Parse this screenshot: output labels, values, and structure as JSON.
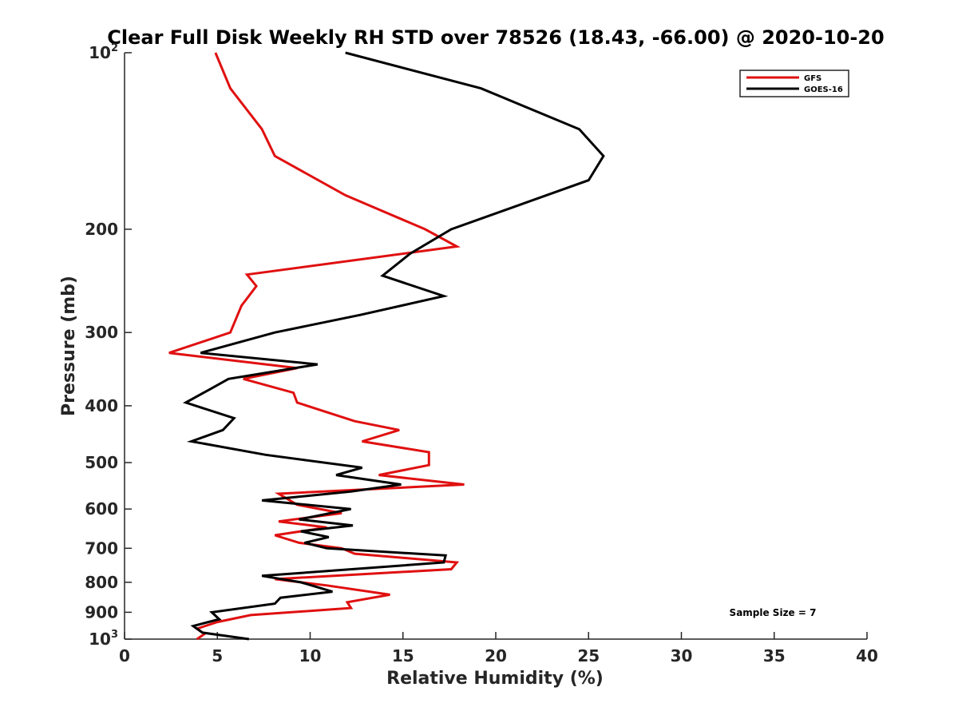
{
  "chart_data": {
    "type": "line",
    "title": "Clear Full Disk Weekly RH STD over 78526 (18.43, -66.00) @ 2020-10-20",
    "xlabel": "Relative Humidity (%)",
    "ylabel": "Pressure (mb)",
    "xlim": [
      0,
      40
    ],
    "ylim": [
      100,
      1000
    ],
    "yscale": "log",
    "y_reversed": true,
    "grid": false,
    "legend_position": "top-right",
    "x_ticks": [
      "0",
      "5",
      "10",
      "15",
      "20",
      "25",
      "30",
      "35",
      "40"
    ],
    "y_ticks": [
      {
        "value": 100,
        "base": "10",
        "exp": "2"
      },
      {
        "value": 200,
        "label": "200"
      },
      {
        "value": 300,
        "label": "300"
      },
      {
        "value": 400,
        "label": "400"
      },
      {
        "value": 500,
        "label": "500"
      },
      {
        "value": 600,
        "label": "600"
      },
      {
        "value": 700,
        "label": "700"
      },
      {
        "value": 800,
        "label": "800"
      },
      {
        "value": 900,
        "label": "900"
      },
      {
        "value": 1000,
        "base": "10",
        "exp": "3"
      }
    ],
    "annotation": "Sample Size = 7",
    "series": [
      {
        "name": "GFS",
        "color": "#e01010",
        "points": [
          [
            4.9,
            100
          ],
          [
            5.7,
            115
          ],
          [
            7.4,
            135
          ],
          [
            8.1,
            150
          ],
          [
            11.9,
            175
          ],
          [
            16.2,
            200
          ],
          [
            17.9,
            214
          ],
          [
            6.6,
            239
          ],
          [
            7.1,
            250
          ],
          [
            6.3,
            270
          ],
          [
            5.7,
            300
          ],
          [
            2.4,
            325
          ],
          [
            9.3,
            345
          ],
          [
            6.4,
            360
          ],
          [
            9.1,
            380
          ],
          [
            9.3,
            395
          ],
          [
            12.4,
            425
          ],
          [
            14.8,
            440
          ],
          [
            12.8,
            460
          ],
          [
            16.4,
            480
          ],
          [
            16.4,
            505
          ],
          [
            13.7,
            525
          ],
          [
            18.3,
            545
          ],
          [
            8.3,
            565
          ],
          [
            9.3,
            590
          ],
          [
            11.7,
            610
          ],
          [
            8.3,
            630
          ],
          [
            10.9,
            645
          ],
          [
            8.1,
            665
          ],
          [
            9.4,
            685
          ],
          [
            11.7,
            700
          ],
          [
            12.4,
            715
          ],
          [
            17.9,
            740
          ],
          [
            17.6,
            760
          ],
          [
            8.1,
            790
          ],
          [
            10.9,
            810
          ],
          [
            14.3,
            840
          ],
          [
            12.0,
            865
          ],
          [
            12.2,
            885
          ],
          [
            6.8,
            910
          ],
          [
            5.0,
            935
          ],
          [
            3.9,
            960
          ],
          [
            4.3,
            980
          ],
          [
            3.9,
            1000
          ]
        ]
      },
      {
        "name": "GOES-16",
        "color": "#000000",
        "points": [
          [
            11.9,
            100
          ],
          [
            19.2,
            115
          ],
          [
            24.5,
            135
          ],
          [
            25.8,
            150
          ],
          [
            25.0,
            165
          ],
          [
            17.6,
            200
          ],
          [
            15.4,
            220
          ],
          [
            13.9,
            240
          ],
          [
            17.2,
            260
          ],
          [
            12.7,
            280
          ],
          [
            8.1,
            300
          ],
          [
            4.1,
            325
          ],
          [
            10.4,
            340
          ],
          [
            5.6,
            360
          ],
          [
            4.6,
            375
          ],
          [
            3.3,
            395
          ],
          [
            5.9,
            420
          ],
          [
            5.3,
            440
          ],
          [
            3.6,
            460
          ],
          [
            7.6,
            485
          ],
          [
            12.8,
            510
          ],
          [
            11.4,
            525
          ],
          [
            14.9,
            545
          ],
          [
            12.2,
            560
          ],
          [
            7.4,
            580
          ],
          [
            12.2,
            600
          ],
          [
            9.4,
            625
          ],
          [
            12.3,
            640
          ],
          [
            9.5,
            655
          ],
          [
            11.0,
            670
          ],
          [
            9.7,
            685
          ],
          [
            10.9,
            700
          ],
          [
            17.3,
            720
          ],
          [
            17.2,
            740
          ],
          [
            7.4,
            780
          ],
          [
            9.5,
            800
          ],
          [
            11.2,
            830
          ],
          [
            8.4,
            850
          ],
          [
            8.1,
            870
          ],
          [
            4.7,
            900
          ],
          [
            5.1,
            925
          ],
          [
            3.7,
            950
          ],
          [
            4.2,
            975
          ],
          [
            6.7,
            1000
          ]
        ]
      }
    ]
  }
}
